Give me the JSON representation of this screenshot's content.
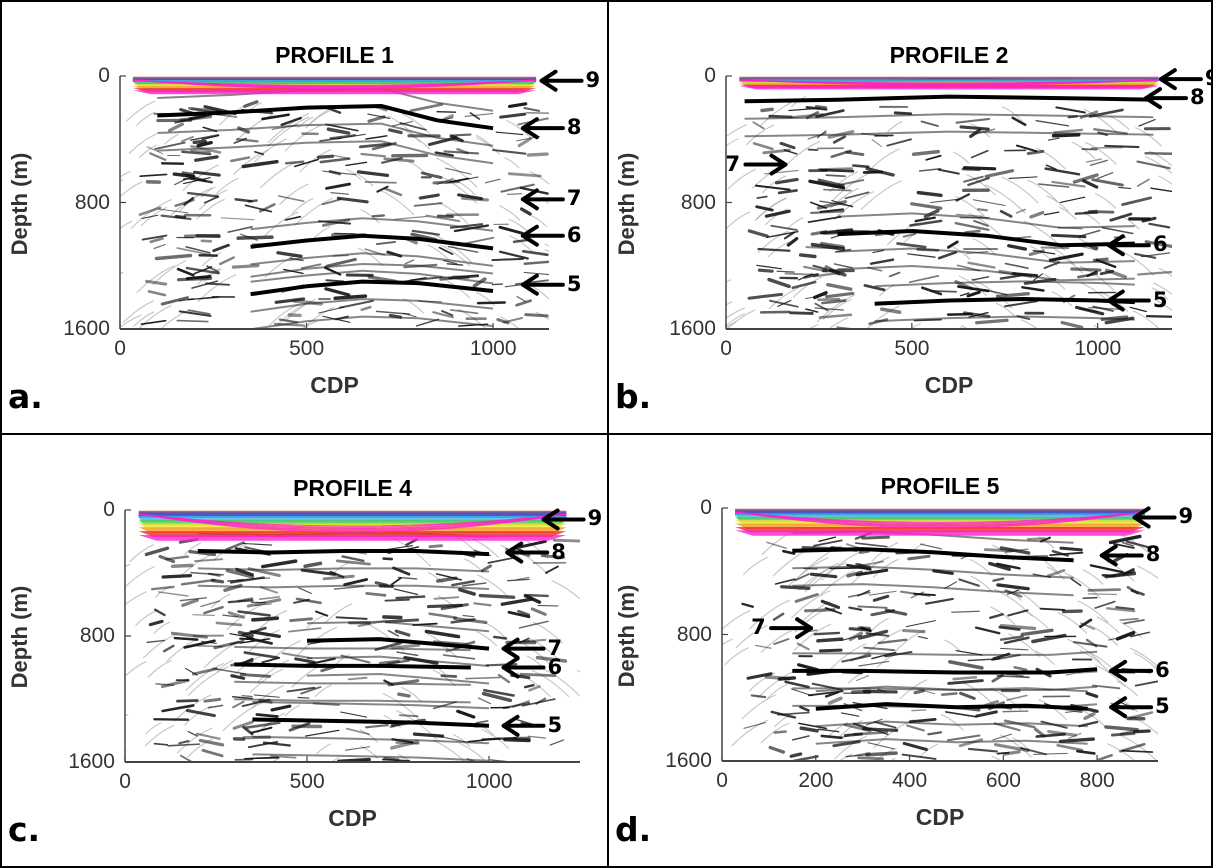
{
  "chart_data": [
    {
      "type": "heatmap",
      "subtype": "seismic depth section",
      "panel_label": "a.",
      "title": "PROFILE 1",
      "xlabel": "CDP",
      "ylabel": "Depth (m)",
      "xlim": [
        0,
        1150
      ],
      "ylim": [
        1600,
        0
      ],
      "xticks": [
        "0",
        "500",
        "1000"
      ],
      "yticks": [
        "0",
        "800",
        "1600"
      ],
      "annotations": [
        {
          "label": "9",
          "depth": 30,
          "cdp": 1130,
          "direction": "left"
        },
        {
          "label": "8",
          "depth": 330,
          "cdp": 1080,
          "direction": "left"
        },
        {
          "label": "7",
          "depth": 780,
          "cdp": 1080,
          "direction": "left"
        },
        {
          "label": "6",
          "depth": 1010,
          "cdp": 1080,
          "direction": "left"
        },
        {
          "label": "5",
          "depth": 1320,
          "cdp": 1080,
          "direction": "left"
        }
      ],
      "reflectors": [
        {
          "name": "8",
          "cdp": [
            100,
            300,
            500,
            700,
            850,
            1000
          ],
          "depth": [
            250,
            230,
            200,
            190,
            280,
            330
          ]
        },
        {
          "name": "6",
          "cdp": [
            350,
            500,
            650,
            800,
            1000
          ],
          "depth": [
            1080,
            1040,
            1010,
            1030,
            1090
          ]
        },
        {
          "name": "5",
          "cdp": [
            350,
            500,
            650,
            800,
            1000
          ],
          "depth": [
            1380,
            1330,
            1300,
            1310,
            1360
          ]
        }
      ]
    },
    {
      "type": "heatmap",
      "subtype": "seismic depth section",
      "panel_label": "b.",
      "title": "PROFILE 2",
      "xlabel": "CDP",
      "ylabel": "Depth (m)",
      "xlim": [
        0,
        1200
      ],
      "ylim": [
        1600,
        0
      ],
      "xticks": [
        "0",
        "500",
        "1000"
      ],
      "yticks": [
        "0",
        "800",
        "1600"
      ],
      "annotations": [
        {
          "label": "9",
          "depth": 20,
          "cdp": 1170,
          "direction": "left"
        },
        {
          "label": "8",
          "depth": 140,
          "cdp": 1130,
          "direction": "left"
        },
        {
          "label": "7",
          "depth": 560,
          "cdp": 160,
          "direction": "right"
        },
        {
          "label": "6",
          "depth": 1070,
          "cdp": 1030,
          "direction": "left"
        },
        {
          "label": "5",
          "depth": 1420,
          "cdp": 1030,
          "direction": "left"
        }
      ],
      "reflectors": [
        {
          "name": "8",
          "cdp": [
            50,
            300,
            600,
            900,
            1150
          ],
          "depth": [
            160,
            150,
            130,
            140,
            150
          ]
        },
        {
          "name": "6",
          "cdp": [
            300,
            500,
            700,
            900,
            1100
          ],
          "depth": [
            1000,
            980,
            1010,
            1070,
            1060
          ]
        },
        {
          "name": "5",
          "cdp": [
            400,
            600,
            800,
            1000,
            1100
          ],
          "depth": [
            1440,
            1420,
            1410,
            1420,
            1430
          ]
        }
      ]
    },
    {
      "type": "heatmap",
      "subtype": "seismic depth section",
      "panel_label": "c.",
      "title": "PROFILE 4",
      "xlabel": "CDP",
      "ylabel": "Depth (m)",
      "xlim": [
        0,
        1250
      ],
      "ylim": [
        1600,
        0
      ],
      "xticks": [
        "0",
        "500",
        "1000"
      ],
      "yticks": [
        "0",
        "800",
        "1600"
      ],
      "annotations": [
        {
          "label": "9",
          "depth": 60,
          "cdp": 1150,
          "direction": "left"
        },
        {
          "label": "8",
          "depth": 270,
          "cdp": 1050,
          "direction": "left"
        },
        {
          "label": "7",
          "depth": 880,
          "cdp": 1040,
          "direction": "left"
        },
        {
          "label": "6",
          "depth": 1000,
          "cdp": 1040,
          "direction": "left"
        },
        {
          "label": "5",
          "depth": 1370,
          "cdp": 1040,
          "direction": "left"
        }
      ],
      "reflectors": [
        {
          "name": "8",
          "cdp": [
            200,
            400,
            600,
            800,
            1000
          ],
          "depth": [
            260,
            270,
            260,
            260,
            280
          ]
        },
        {
          "name": "7",
          "cdp": [
            500,
            700,
            900,
            1000
          ],
          "depth": [
            830,
            820,
            860,
            880
          ]
        },
        {
          "name": "6",
          "cdp": [
            300,
            500,
            700,
            950
          ],
          "depth": [
            980,
            990,
            990,
            1000
          ]
        },
        {
          "name": "5",
          "cdp": [
            350,
            600,
            800,
            1000
          ],
          "depth": [
            1330,
            1340,
            1350,
            1370
          ]
        }
      ]
    },
    {
      "type": "heatmap",
      "subtype": "seismic depth section",
      "panel_label": "d.",
      "title": "PROFILE 5",
      "xlabel": "CDP",
      "ylabel": "Depth (m)",
      "xlim": [
        0,
        930
      ],
      "ylim": [
        1600,
        0
      ],
      "xticks": [
        "0",
        "200",
        "400",
        "600",
        "800"
      ],
      "yticks": [
        "0",
        "800",
        "1600"
      ],
      "annotations": [
        {
          "label": "9",
          "depth": 60,
          "cdp": 880,
          "direction": "left"
        },
        {
          "label": "8",
          "depth": 300,
          "cdp": 810,
          "direction": "left"
        },
        {
          "label": "7",
          "depth": 760,
          "cdp": 190,
          "direction": "right"
        },
        {
          "label": "6",
          "depth": 1030,
          "cdp": 830,
          "direction": "left"
        },
        {
          "label": "5",
          "depth": 1260,
          "cdp": 830,
          "direction": "left"
        }
      ],
      "reflectors": [
        {
          "name": "8",
          "cdp": [
            150,
            300,
            450,
            600,
            750
          ],
          "depth": [
            270,
            260,
            280,
            310,
            330
          ]
        },
        {
          "name": "6",
          "cdp": [
            150,
            300,
            500,
            700,
            800
          ],
          "depth": [
            1030,
            1030,
            1040,
            1040,
            1020
          ]
        },
        {
          "name": "5",
          "cdp": [
            200,
            350,
            500,
            650,
            780
          ],
          "depth": [
            1270,
            1240,
            1260,
            1250,
            1270
          ]
        }
      ]
    }
  ],
  "colors": {
    "seismic_wiggle": "#000000",
    "near_surface_overlay": [
      "#1a2fb8",
      "#3fb6e8",
      "#4cc84c",
      "#f2e630",
      "#f59a2a",
      "#ee2a2a",
      "#ff1fd2"
    ]
  }
}
